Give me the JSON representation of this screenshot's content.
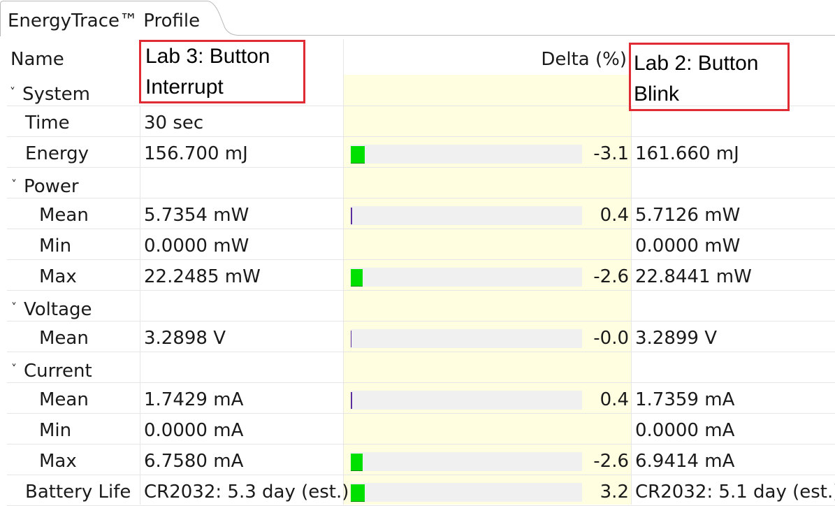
{
  "tab": {
    "title": "EnergyTrace™ Profile"
  },
  "header": {
    "name_label": "Name",
    "delta_label": "Delta (%)",
    "left_label_line1": "Lab 3: Button",
    "left_label_line2": "Interrupt",
    "right_label_line1": "Lab 2: Button",
    "right_label_line2": "Blink"
  },
  "rows": [
    {
      "name": "System",
      "group": true
    },
    {
      "name": "Time",
      "left": "30 sec",
      "delta": "",
      "right": ""
    },
    {
      "name": "Energy",
      "left": "156.700 mJ",
      "delta": "-3.1",
      "right": "161.660 mJ"
    },
    {
      "name": "Power",
      "group": true
    },
    {
      "name": "Mean",
      "left": "5.7354 mW",
      "delta": "0.4",
      "right": "5.7126 mW"
    },
    {
      "name": "Min",
      "left": "0.0000 mW",
      "delta": "",
      "right": "0.0000 mW"
    },
    {
      "name": "Max",
      "left": "22.2485 mW",
      "delta": "-2.6",
      "right": "22.8441 mW"
    },
    {
      "name": "Voltage",
      "group": true
    },
    {
      "name": "Mean",
      "left": "3.2898 V",
      "delta": "-0.0",
      "right": "3.2899 V"
    },
    {
      "name": "Current",
      "group": true
    },
    {
      "name": "Mean",
      "left": "1.7429 mA",
      "delta": "0.4",
      "right": "1.7359 mA"
    },
    {
      "name": "Min",
      "left": "0.0000 mA",
      "delta": "",
      "right": "0.0000 mA"
    },
    {
      "name": "Max",
      "left": "6.7580 mA",
      "delta": "-2.6",
      "right": "6.9414 mA"
    },
    {
      "name": "Battery Life",
      "left": "CR2032: 5.3 day (est.)",
      "delta": "3.2",
      "right": "CR2032: 5.1 day (est.)"
    }
  ],
  "colors": {
    "bar_green": "#00e000",
    "bar_purple": "#5a2da0",
    "annotation_red": "#e02b35",
    "shade": "#fffee0"
  }
}
